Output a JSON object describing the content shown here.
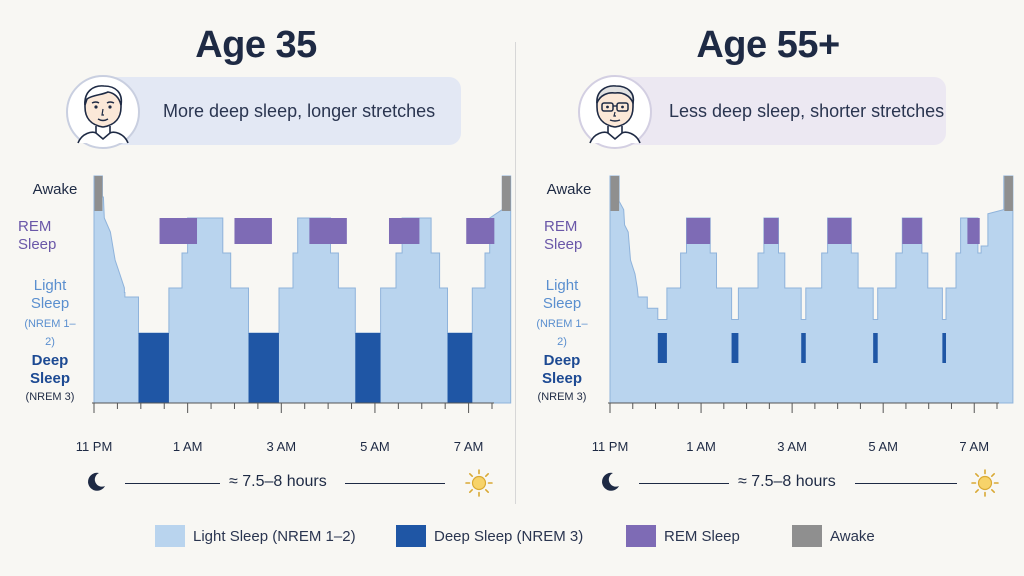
{
  "colors": {
    "light": "#b9d4ee",
    "light_edge": "#8fb3db",
    "deep": "#1f56a5",
    "rem": "#7e6bb5",
    "awake": "#8f8f8f",
    "title": "#1e2a44"
  },
  "panels": [
    {
      "title": "Age 35",
      "caption": "More deep sleep, longer stretches",
      "avatar_icon": "young-man-avatar-icon",
      "duration_text": "≈ 7.5–8 hours"
    },
    {
      "title": "Age 55+",
      "caption": "Less deep sleep, shorter stretches",
      "avatar_icon": "older-man-with-glasses-avatar-icon",
      "duration_text": "≈ 7.5–8 hours"
    }
  ],
  "stage_labels": {
    "awake": "Awake",
    "rem_line1": "REM",
    "rem_line2": "Sleep",
    "light_line1": "Light",
    "light_line2": "Sleep",
    "light_sub": "(NREM 1–2)",
    "deep_line1": "Deep",
    "deep_line2": "Sleep",
    "deep_sub": "(NREM 3)"
  },
  "icons": {
    "start": "moon-icon",
    "end": "sun-icon"
  },
  "legend": [
    {
      "label": "Light Sleep (NREM 1–2)",
      "color": "#b9d4ee",
      "name": "legend-light-sleep"
    },
    {
      "label": "Deep Sleep (NREM 3)",
      "color": "#1f56a5",
      "name": "legend-deep-sleep"
    },
    {
      "label": "REM Sleep",
      "color": "#7e6bb5",
      "name": "legend-rem-sleep"
    },
    {
      "label": "Awake",
      "color": "#8f8f8f",
      "name": "legend-awake"
    }
  ],
  "chart_data": [
    {
      "type": "area",
      "title": "Age 35",
      "x_axis": {
        "start": "11 PM",
        "end": "7:30 AM",
        "range_hours": [
          0,
          8.5
        ]
      },
      "x_ticks": [
        {
          "label": "11 PM",
          "h": 0
        },
        {
          "label": "1 AM",
          "h": 2
        },
        {
          "label": "3 AM",
          "h": 4
        },
        {
          "label": "5 AM",
          "h": 6
        },
        {
          "label": "7 AM",
          "h": 8
        }
      ],
      "y_levels": [
        "Deep Sleep (NREM 3)",
        "Light Sleep (NREM 1–2)",
        "REM Sleep",
        "Awake"
      ],
      "hypnogram": [
        [
          0.0,
          3
        ],
        [
          0.18,
          3
        ],
        [
          0.18,
          2.5
        ],
        [
          0.2,
          2.5
        ],
        [
          0.22,
          2
        ],
        [
          0.35,
          1.8
        ],
        [
          0.45,
          1.4
        ],
        [
          0.55,
          1.2
        ],
        [
          0.65,
          1
        ],
        [
          0.65,
          0.9
        ],
        [
          0.66,
          0.9
        ],
        [
          0.66,
          0.8
        ],
        [
          0.95,
          0.8
        ],
        [
          0.95,
          0
        ],
        [
          1.6,
          0
        ],
        [
          1.6,
          1
        ],
        [
          1.88,
          1
        ],
        [
          1.88,
          1.5
        ],
        [
          2.0,
          1.5
        ],
        [
          2.0,
          2
        ],
        [
          2.75,
          2
        ],
        [
          2.75,
          1.5
        ],
        [
          2.92,
          1.5
        ],
        [
          2.92,
          1
        ],
        [
          3.3,
          1
        ],
        [
          3.3,
          0
        ],
        [
          3.95,
          0
        ],
        [
          3.95,
          1
        ],
        [
          4.25,
          1
        ],
        [
          4.25,
          1.5
        ],
        [
          4.35,
          1.5
        ],
        [
          4.35,
          2
        ],
        [
          5.05,
          2
        ],
        [
          5.05,
          1.5
        ],
        [
          5.22,
          1.5
        ],
        [
          5.22,
          1
        ],
        [
          5.58,
          1
        ],
        [
          5.58,
          0
        ],
        [
          6.12,
          0
        ],
        [
          6.12,
          1
        ],
        [
          6.45,
          1
        ],
        [
          6.45,
          1.5
        ],
        [
          6.58,
          1.5
        ],
        [
          6.58,
          2
        ],
        [
          7.2,
          2
        ],
        [
          7.2,
          1.5
        ],
        [
          7.38,
          1.5
        ],
        [
          7.38,
          1
        ],
        [
          7.55,
          1
        ],
        [
          7.55,
          0
        ],
        [
          8.08,
          0
        ],
        [
          8.08,
          1
        ],
        [
          8.35,
          1
        ],
        [
          8.35,
          1.5
        ],
        [
          8.45,
          1.5
        ],
        [
          8.45,
          2.0
        ],
        [
          8.72,
          2.2
        ],
        [
          8.72,
          3
        ],
        [
          8.9,
          3
        ]
      ],
      "rem_periods": [
        [
          1.4,
          2.2
        ],
        [
          3.0,
          3.8
        ],
        [
          4.6,
          5.4
        ],
        [
          6.3,
          6.95
        ],
        [
          7.95,
          8.55
        ]
      ],
      "deep_periods": [
        [
          0.95,
          1.6
        ],
        [
          3.3,
          3.95
        ],
        [
          5.58,
          6.12
        ],
        [
          7.55,
          8.08
        ],
        [
          8.68,
          8.7
        ]
      ],
      "awake_periods": [
        [
          0.0,
          0.18
        ],
        [
          8.7,
          8.9
        ]
      ]
    },
    {
      "type": "area",
      "title": "Age 55+",
      "x_axis": {
        "start": "11 PM",
        "end": "7:30 AM",
        "range_hours": [
          0,
          8.5
        ]
      },
      "x_ticks": [
        {
          "label": "11 PM",
          "h": 0
        },
        {
          "label": "1 AM",
          "h": 2
        },
        {
          "label": "3 AM",
          "h": 4
        },
        {
          "label": "5 AM",
          "h": 6
        },
        {
          "label": "7 AM",
          "h": 8
        }
      ],
      "y_levels": [
        "Deep Sleep (NREM 3)",
        "Light Sleep (NREM 1–2)",
        "REM Sleep",
        "Awake"
      ],
      "hypnogram": [
        [
          0.0,
          3
        ],
        [
          0.2,
          3
        ],
        [
          0.2,
          2.4
        ],
        [
          0.3,
          2.2
        ],
        [
          0.32,
          1.9
        ],
        [
          0.4,
          1.8
        ],
        [
          0.45,
          1.4
        ],
        [
          0.55,
          1.2
        ],
        [
          0.6,
          1
        ],
        [
          0.62,
          0.8
        ],
        [
          0.82,
          0.8
        ],
        [
          0.82,
          0.55
        ],
        [
          1.05,
          0.55
        ],
        [
          1.05,
          0.3
        ],
        [
          1.25,
          0.3
        ],
        [
          1.25,
          1
        ],
        [
          1.55,
          1
        ],
        [
          1.55,
          1.5
        ],
        [
          1.68,
          1.5
        ],
        [
          1.68,
          2
        ],
        [
          2.2,
          2
        ],
        [
          2.2,
          1.5
        ],
        [
          2.34,
          1.5
        ],
        [
          2.34,
          1
        ],
        [
          2.67,
          1
        ],
        [
          2.67,
          0.3
        ],
        [
          2.82,
          0.3
        ],
        [
          2.82,
          1
        ],
        [
          3.25,
          1
        ],
        [
          3.25,
          1.5
        ],
        [
          3.38,
          1.5
        ],
        [
          3.38,
          2
        ],
        [
          3.7,
          2
        ],
        [
          3.7,
          1.5
        ],
        [
          3.84,
          1.5
        ],
        [
          3.84,
          1
        ],
        [
          4.2,
          1
        ],
        [
          4.2,
          0.3
        ],
        [
          4.3,
          0.3
        ],
        [
          4.3,
          1
        ],
        [
          4.65,
          1
        ],
        [
          4.65,
          1.5
        ],
        [
          4.78,
          1.5
        ],
        [
          4.78,
          2
        ],
        [
          5.3,
          2
        ],
        [
          5.3,
          1.5
        ],
        [
          5.45,
          1.5
        ],
        [
          5.45,
          1
        ],
        [
          5.78,
          1
        ],
        [
          5.78,
          0.3
        ],
        [
          5.88,
          0.3
        ],
        [
          5.88,
          1
        ],
        [
          6.28,
          1
        ],
        [
          6.28,
          1.5
        ],
        [
          6.42,
          1.5
        ],
        [
          6.42,
          2
        ],
        [
          6.85,
          2
        ],
        [
          6.85,
          1.5
        ],
        [
          6.98,
          1.5
        ],
        [
          6.98,
          1
        ],
        [
          7.3,
          1
        ],
        [
          7.3,
          0.3
        ],
        [
          7.38,
          0.3
        ],
        [
          7.38,
          1
        ],
        [
          7.6,
          1
        ],
        [
          7.6,
          1.5
        ],
        [
          7.7,
          1.5
        ],
        [
          7.7,
          2
        ],
        [
          8.08,
          2
        ],
        [
          8.08,
          1.5
        ],
        [
          8.15,
          1.5
        ],
        [
          8.15,
          1.6
        ],
        [
          8.3,
          1.6
        ],
        [
          8.3,
          2.1
        ],
        [
          8.65,
          2.2
        ],
        [
          8.65,
          3
        ],
        [
          8.85,
          3
        ]
      ],
      "rem_periods": [
        [
          1.68,
          2.2
        ],
        [
          3.38,
          3.7
        ],
        [
          4.78,
          5.3
        ],
        [
          6.42,
          6.85
        ],
        [
          7.85,
          8.12
        ]
      ],
      "deep_periods": [
        [
          1.05,
          1.25
        ],
        [
          2.67,
          2.82
        ],
        [
          4.2,
          4.3
        ],
        [
          5.78,
          5.88
        ],
        [
          7.3,
          7.38
        ]
      ],
      "awake_periods": [
        [
          0.0,
          0.2
        ],
        [
          8.65,
          8.85
        ]
      ]
    }
  ]
}
